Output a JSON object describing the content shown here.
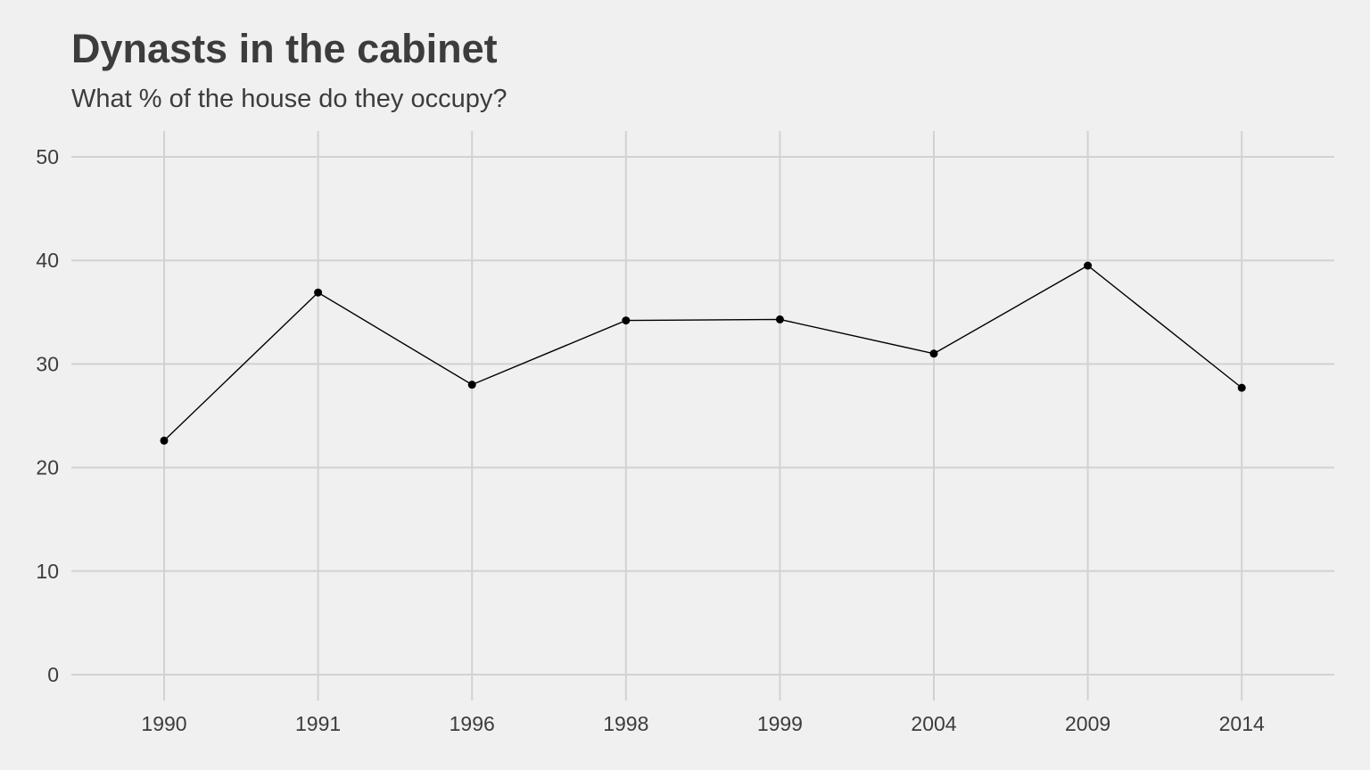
{
  "chart_data": {
    "type": "line",
    "title": "Dynasts in the cabinet",
    "subtitle": "What % of the house do they occupy?",
    "xlabel": "",
    "ylabel": "",
    "categories": [
      "1990",
      "1991",
      "1996",
      "1998",
      "1999",
      "2004",
      "2009",
      "2014"
    ],
    "series": [
      {
        "values": [
          22.6,
          36.9,
          28.0,
          34.2,
          34.3,
          31.0,
          39.5,
          27.7
        ]
      }
    ],
    "ylim": [
      0,
      50
    ],
    "yticks": [
      0,
      10,
      20,
      30,
      40,
      50
    ],
    "grid": true,
    "legend": "none",
    "colors": {
      "background": "#f0f0f0",
      "grid": "#d2d2d2",
      "line": "#000000",
      "text": "#3c3c3c"
    }
  }
}
